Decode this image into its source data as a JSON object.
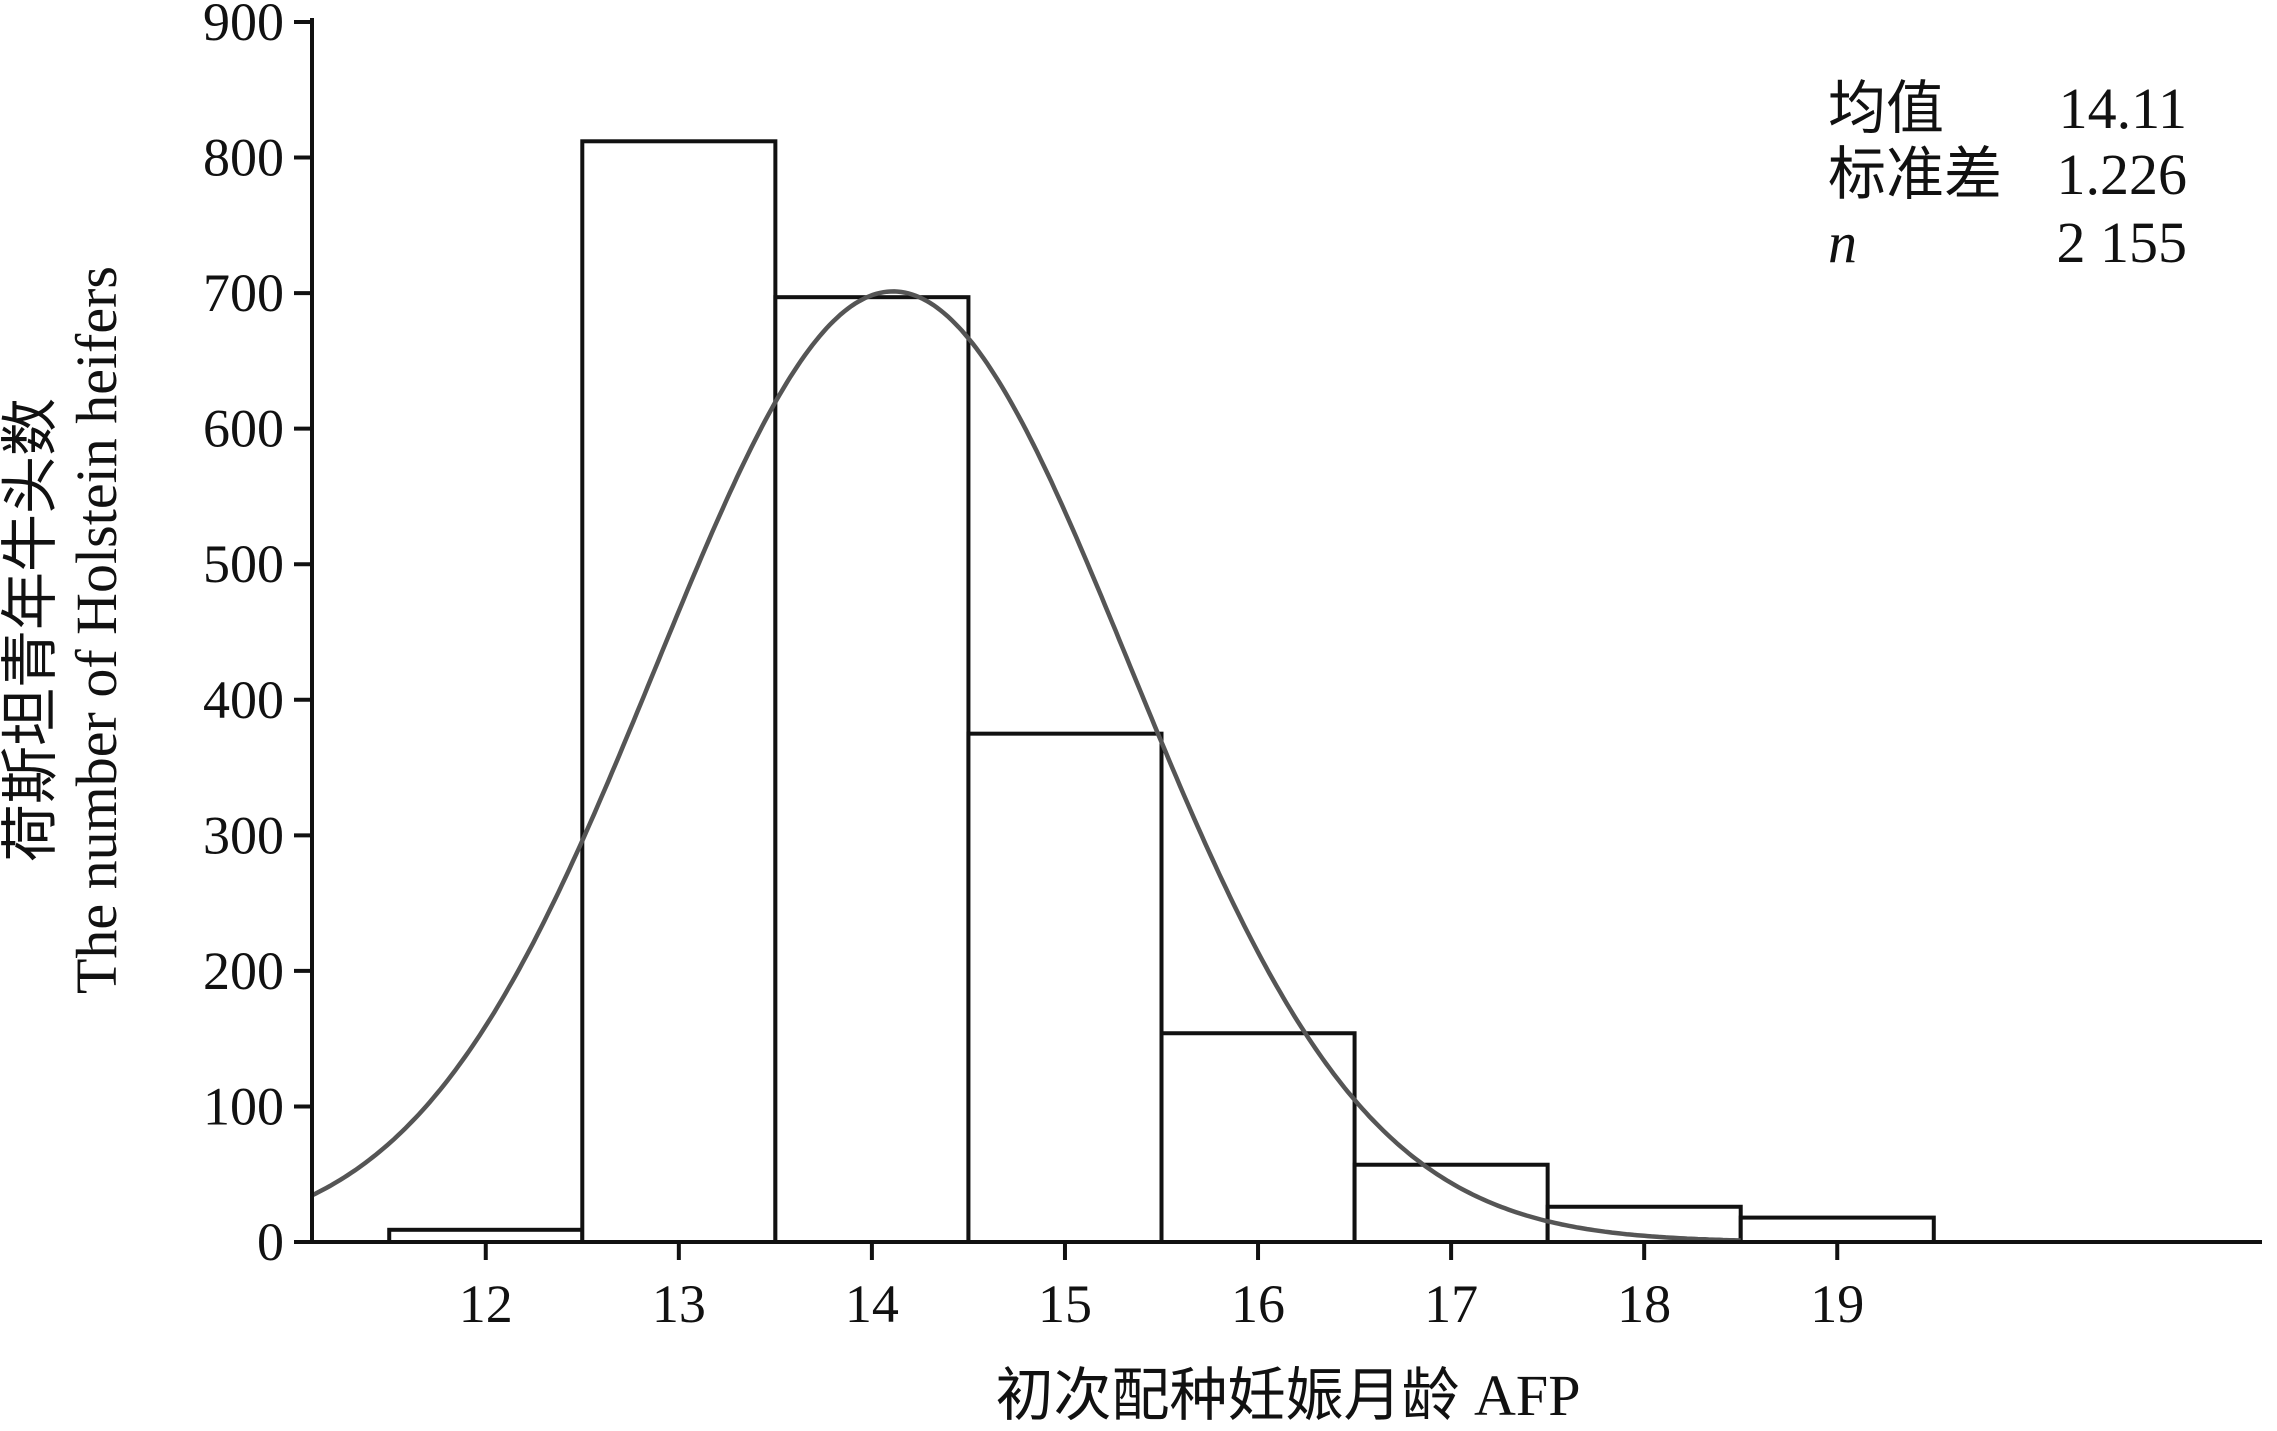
{
  "chart_data": {
    "type": "bar",
    "subtype": "histogram",
    "xlabel": "初次配种妊娠月龄 AFP",
    "ylabel": [
      "荷斯坦青年牛头数",
      "The number of Holstein heifers"
    ],
    "xlim": [
      11.1,
      21.2
    ],
    "ylim": [
      0,
      900
    ],
    "x_ticks": [
      12,
      13,
      14,
      15,
      16,
      17,
      18,
      19
    ],
    "y_ticks": [
      0,
      100,
      200,
      300,
      400,
      500,
      600,
      700,
      800,
      900
    ],
    "bins": [
      {
        "from": 11.5,
        "to": 12.5,
        "count": 9
      },
      {
        "from": 12.5,
        "to": 13.5,
        "count": 812
      },
      {
        "from": 13.5,
        "to": 14.5,
        "count": 697
      },
      {
        "from": 14.5,
        "to": 15.5,
        "count": 375
      },
      {
        "from": 15.5,
        "to": 16.5,
        "count": 154
      },
      {
        "from": 16.5,
        "to": 17.5,
        "count": 57
      },
      {
        "from": 17.5,
        "to": 18.5,
        "count": 26
      },
      {
        "from": 18.5,
        "to": 19.5,
        "count": 18
      }
    ],
    "normal_curve": {
      "mean": 14.11,
      "sd": 1.226,
      "n": 2155,
      "bin_width": 1,
      "color": "#555555"
    },
    "stats": [
      {
        "label": "均值",
        "value": "14.11"
      },
      {
        "label": "标准差",
        "value": "1.226"
      },
      {
        "label": "n",
        "value": "2 155"
      }
    ],
    "legend_position": "top-right",
    "grid": false
  }
}
